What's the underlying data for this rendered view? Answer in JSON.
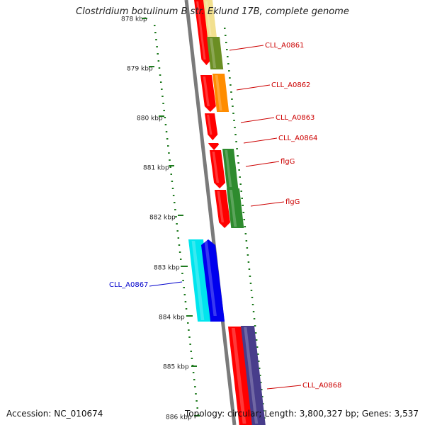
{
  "title": "Clostridium botulinum B str. Eklund 17B, complete genome",
  "footer": {
    "accession": "Accession: NC_010674",
    "topology": "Topology: circular;",
    "length": "Length: 3,800,327 bp;",
    "genes": "Genes: 3,537"
  },
  "colors": {
    "backbone": "#7a7a7a",
    "ruler": "#1e7a1e",
    "label_forward": "#cc0000",
    "label_reverse": "#0000cc"
  },
  "ruler": {
    "labels": [
      "878 kbp",
      "879 kbp",
      "880 kbp",
      "881 kbp",
      "882 kbp",
      "883 kbp",
      "884 kbp",
      "885 kbp",
      "886 kbp"
    ]
  },
  "genes": [
    {
      "id": "g0",
      "label": "",
      "color": "#ff0000",
      "strand": "+"
    },
    {
      "id": "g1",
      "label": "",
      "color": "#f2e08f",
      "strand": "+"
    },
    {
      "id": "g2",
      "label": "CLL_A0861",
      "color": "#6b8e23",
      "strand": "+"
    },
    {
      "id": "g3",
      "label": "",
      "color": "#ff0000",
      "strand": "+"
    },
    {
      "id": "g4",
      "label": "CLL_A0862",
      "color": "#ff8c00",
      "strand": "+"
    },
    {
      "id": "g5",
      "label": "",
      "color": "#ff0000",
      "strand": "+"
    },
    {
      "id": "g6",
      "label": "CLL_A0863",
      "color": "#ff0000",
      "strand": "+"
    },
    {
      "id": "g7",
      "label": "CLL_A0864",
      "color": "#ff0000",
      "strand": "+"
    },
    {
      "id": "g8",
      "label": "",
      "color": "#ff0000",
      "strand": "+"
    },
    {
      "id": "g9",
      "label": "flgG",
      "color": "#2e8b2e",
      "strand": "+"
    },
    {
      "id": "g10",
      "label": "",
      "color": "#ff0000",
      "strand": "+"
    },
    {
      "id": "g11",
      "label": "flgG",
      "color": "#2e8b2e",
      "strand": "+"
    },
    {
      "id": "g12",
      "label": "CLL_A0867",
      "color": "#00e5ee",
      "strand": "-"
    },
    {
      "id": "g13",
      "label": "",
      "color": "#0000ee",
      "strand": "-"
    },
    {
      "id": "g14",
      "label": "",
      "color": "#ff0000",
      "strand": "+"
    },
    {
      "id": "g15",
      "label": "CLL_A0868",
      "color": "#483d8b",
      "strand": "+"
    }
  ]
}
